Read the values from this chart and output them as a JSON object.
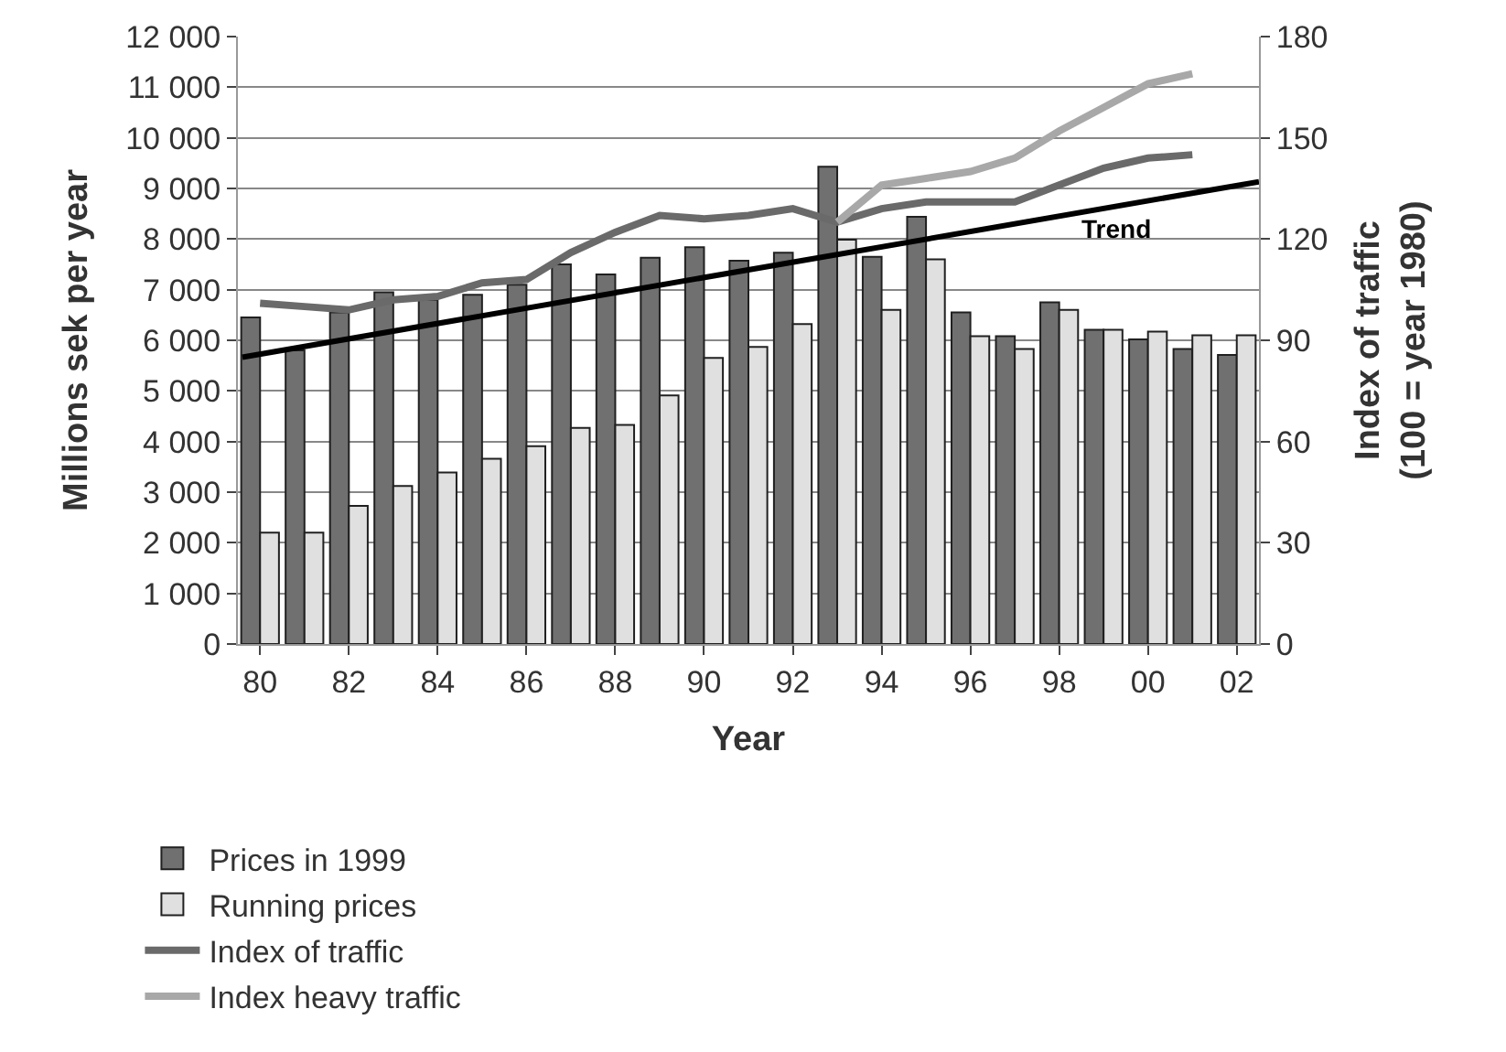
{
  "chart_data": {
    "type": "bar",
    "xlabel": "Year",
    "ylabel": "Millions sek per year",
    "y2label": "Index of traffic\n(100 = year 1980)",
    "x": [
      1980,
      1981,
      1982,
      1983,
      1984,
      1985,
      1986,
      1987,
      1988,
      1989,
      1990,
      1991,
      1992,
      1993,
      1994,
      1995,
      1996,
      1997,
      1998,
      1999,
      2000,
      2001,
      2002
    ],
    "xlim": [
      1979.5,
      2002.5
    ],
    "xticks": [
      {
        "value": 1980,
        "label": "80"
      },
      {
        "value": 1982,
        "label": "82"
      },
      {
        "value": 1984,
        "label": "84"
      },
      {
        "value": 1986,
        "label": "86"
      },
      {
        "value": 1988,
        "label": "88"
      },
      {
        "value": 1990,
        "label": "90"
      },
      {
        "value": 1992,
        "label": "92"
      },
      {
        "value": 1994,
        "label": "94"
      },
      {
        "value": 1996,
        "label": "96"
      },
      {
        "value": 1998,
        "label": "98"
      },
      {
        "value": 2000,
        "label": "00"
      },
      {
        "value": 2002,
        "label": "02"
      }
    ],
    "ylim": [
      0,
      12000
    ],
    "yticks": [
      {
        "value": 0,
        "label": "0"
      },
      {
        "value": 1000,
        "label": "1 000"
      },
      {
        "value": 2000,
        "label": "2 000"
      },
      {
        "value": 3000,
        "label": "3 000"
      },
      {
        "value": 4000,
        "label": "4 000"
      },
      {
        "value": 5000,
        "label": "5 000"
      },
      {
        "value": 6000,
        "label": "6 000"
      },
      {
        "value": 7000,
        "label": "7 000"
      },
      {
        "value": 8000,
        "label": "8 000"
      },
      {
        "value": 9000,
        "label": "9 000"
      },
      {
        "value": 10000,
        "label": "10 000"
      },
      {
        "value": 11000,
        "label": "11 000"
      },
      {
        "value": 12000,
        "label": "12 000"
      }
    ],
    "y2lim": [
      0,
      180
    ],
    "y2ticks": [
      0,
      30,
      60,
      90,
      120,
      150,
      180
    ],
    "grid": "y",
    "legend": "bottom",
    "series": [
      {
        "name": "Prices in 1999",
        "color": "#707070",
        "values": [
          6450,
          5800,
          6550,
          6950,
          6800,
          6900,
          7100,
          7500,
          7300,
          7630,
          7840,
          7570,
          7730,
          9430,
          7650,
          8440,
          6550,
          6080,
          6750,
          6210,
          6020,
          5830,
          5710
        ]
      },
      {
        "name": "Running prices",
        "color": "#e0e0e0",
        "values": [
          2200,
          2200,
          2730,
          3120,
          3390,
          3660,
          3910,
          4270,
          4330,
          4910,
          5650,
          5870,
          6320,
          7990,
          6600,
          7600,
          6080,
          5830,
          6600,
          6210,
          6170,
          6100,
          6100
        ]
      },
      {
        "name": "Index of traffic",
        "type": "line",
        "axis": "y2",
        "color": "#6a6a6a",
        "x": [
          1980,
          1981,
          1982,
          1983,
          1984,
          1985,
          1986,
          1987,
          1988,
          1989,
          1990,
          1991,
          1992,
          1993,
          1994,
          1995,
          1996,
          1997,
          1998,
          1999,
          2000,
          2001
        ],
        "values": [
          101,
          100,
          99,
          102,
          103,
          107,
          108,
          116,
          122,
          127,
          126,
          127,
          129,
          125,
          129,
          131,
          131,
          131,
          136,
          141,
          144,
          145
        ]
      },
      {
        "name": "Index heavy traffic",
        "type": "line",
        "axis": "y2",
        "color": "#a8a8a8",
        "x": [
          1993,
          1994,
          1995,
          1996,
          1997,
          1998,
          1999,
          2000,
          2001
        ],
        "values": [
          125,
          136,
          138,
          140,
          144,
          152,
          159,
          166,
          169
        ]
      },
      {
        "name": "Trend",
        "type": "line",
        "axis": "y2",
        "color": "#000000",
        "x": [
          1979.6,
          2002.5
        ],
        "values": [
          85,
          137
        ]
      }
    ]
  }
}
